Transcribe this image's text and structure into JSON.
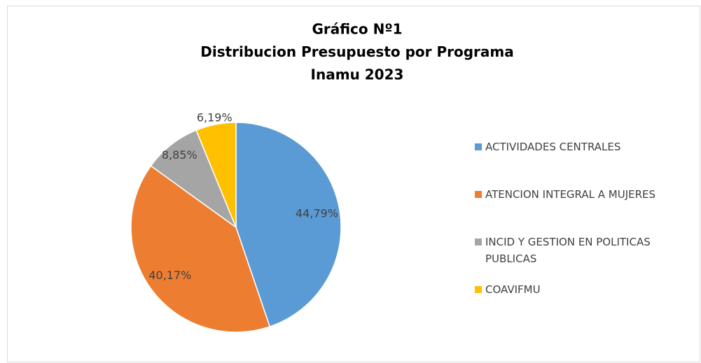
{
  "chart_data": {
    "type": "pie",
    "title": [
      "Gráfico Nº1",
      "Distribucion Presupuesto por Programa",
      "Inamu 2023"
    ],
    "categories": [
      "ACTIVIDADES CENTRALES",
      "ATENCION INTEGRAL A MUJERES",
      "INCID Y GESTION EN POLITICAS PUBLICAS",
      "COAVIFMU"
    ],
    "values": [
      44.79,
      40.17,
      8.85,
      6.19
    ],
    "value_labels": [
      "44,79%",
      "40,17%",
      "8,85%",
      "6,19%"
    ],
    "colors": [
      "#5b9bd5",
      "#ed7d31",
      "#a5a5a5",
      "#ffc000"
    ],
    "legend": "right"
  }
}
